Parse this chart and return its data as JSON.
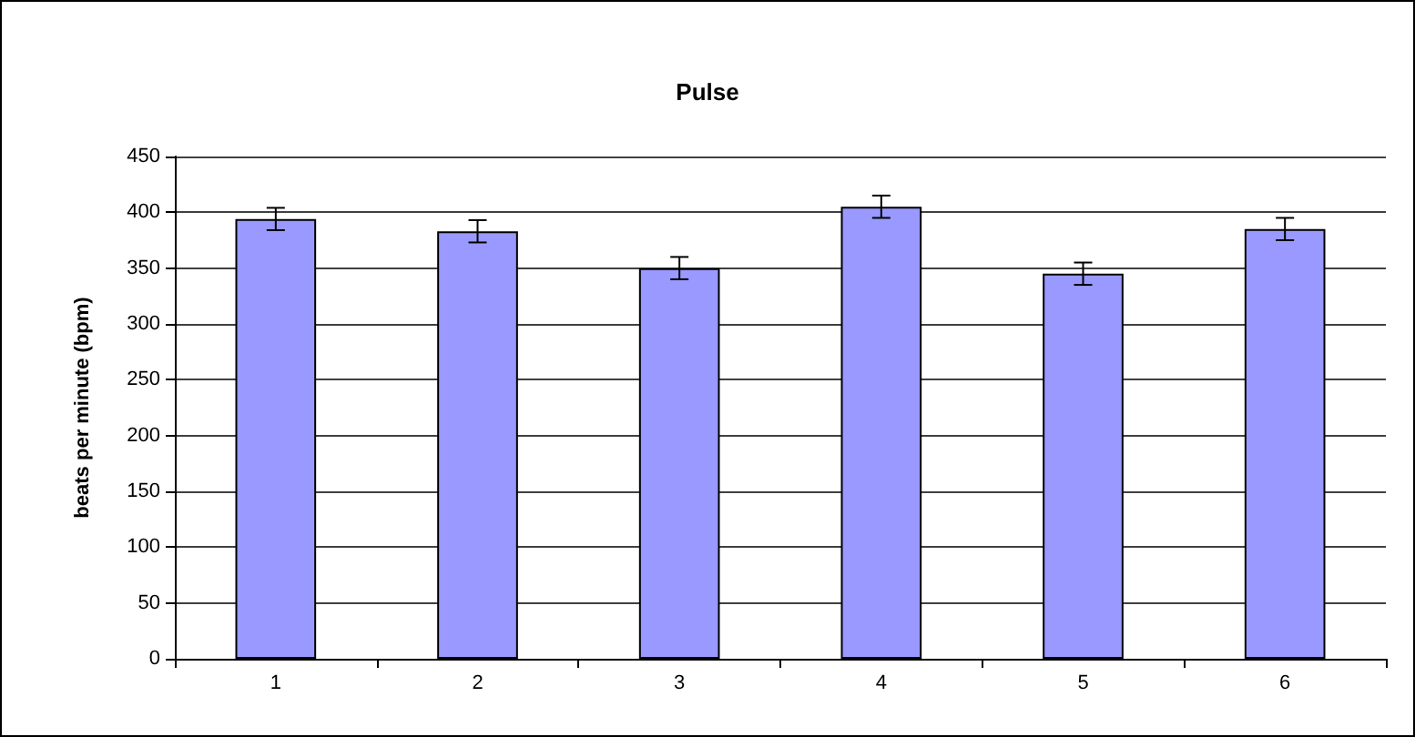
{
  "chart_data": {
    "type": "bar",
    "title": "Pulse",
    "ylabel": "beats per minute (bpm)",
    "categories": [
      "1",
      "2",
      "3",
      "4",
      "5",
      "6"
    ],
    "values": [
      394,
      383,
      350,
      405,
      345,
      385
    ],
    "errors": [
      10,
      10,
      10,
      10,
      10,
      10
    ],
    "color": "#9999ff",
    "ylim": [
      0,
      450
    ],
    "yticks": [
      0,
      50,
      100,
      150,
      200,
      250,
      300,
      350,
      400,
      450
    ],
    "grid": "y"
  }
}
